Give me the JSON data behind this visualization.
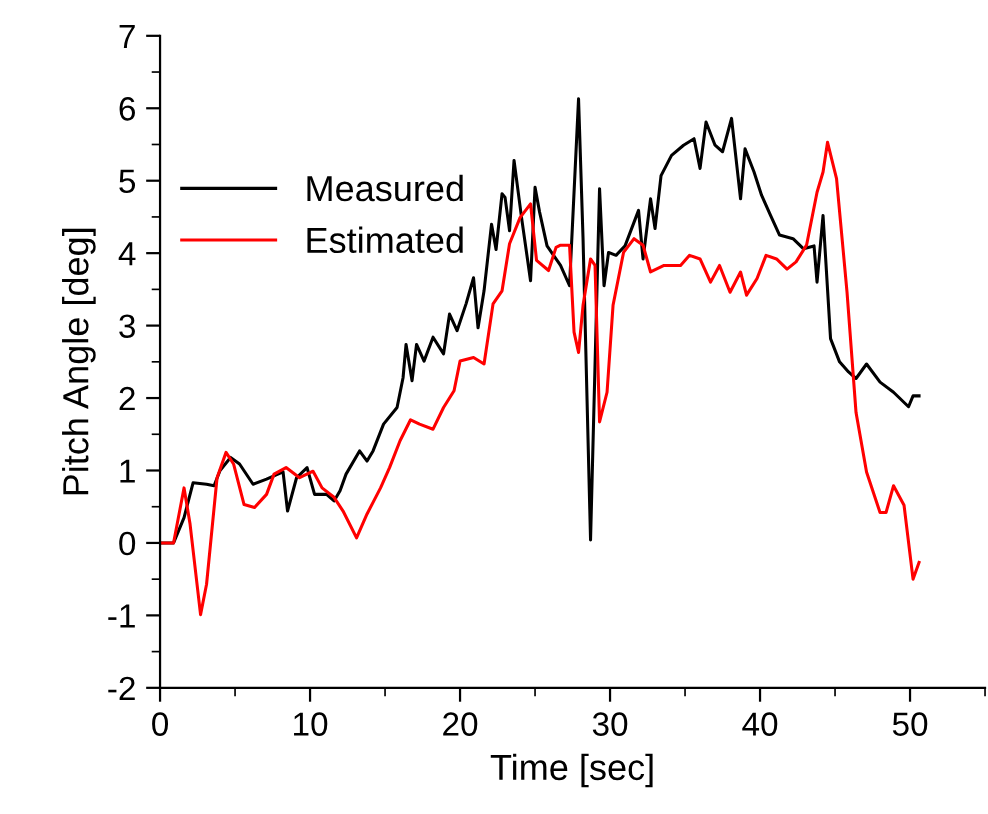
{
  "chart_data": {
    "type": "line",
    "xlabel": "Time [sec]",
    "ylabel": "Pitch Angle [deg]",
    "xlim": [
      0,
      55
    ],
    "ylim": [
      -2,
      7
    ],
    "xticks": [
      0,
      {
        "value": 5,
        "label": null
      },
      10,
      {
        "value": 15,
        "label": null
      },
      20,
      {
        "value": 25,
        "label": null
      },
      30,
      {
        "value": 35,
        "label": null
      },
      40,
      {
        "value": 45,
        "label": null
      },
      50,
      {
        "value": 55,
        "label": null
      }
    ],
    "yticks": [
      -2,
      {
        "value": -1.5,
        "label": null
      },
      -1,
      {
        "value": -0.5,
        "label": null
      },
      0,
      {
        "value": 0.5,
        "label": null
      },
      1,
      {
        "value": 1.5,
        "label": null
      },
      2,
      {
        "value": 2.5,
        "label": null
      },
      3,
      {
        "value": 3.5,
        "label": null
      },
      4,
      {
        "value": 4.5,
        "label": null
      },
      5,
      {
        "value": 5.5,
        "label": null
      },
      6,
      {
        "value": 6.5,
        "label": null
      },
      7
    ],
    "legend": "top left",
    "grid": false,
    "marker": "none",
    "line_style": "solid",
    "series": [
      {
        "name": "Measured",
        "color": "#000000",
        "x": [
          0,
          0.9,
          1.6,
          2.2,
          3.1,
          3.6,
          4,
          4.7,
          5.3,
          6.2,
          7.1,
          8.2,
          8.5,
          9.1,
          9.8,
          10.3,
          11.1,
          11.6,
          12,
          12.4,
          13.3,
          13.8,
          14.2,
          14.9,
          15.8,
          16.2,
          16.4,
          16.8,
          17.1,
          17.6,
          18.2,
          18.9,
          19.3,
          19.8,
          20.4,
          20.9,
          21.2,
          21.6,
          22.1,
          22.4,
          22.8,
          23,
          23.3,
          23.6,
          24.1,
          24.7,
          25,
          25.3,
          25.8,
          26.7,
          27.3,
          27.9,
          28.2,
          28.7,
          29.3,
          29.6,
          29.9,
          30.4,
          31,
          31.9,
          32.2,
          32.7,
          33,
          33.4,
          34.1,
          34.9,
          35.6,
          36,
          36.4,
          37,
          37.5,
          38.1,
          38.7,
          39,
          39.6,
          40.1,
          40.7,
          41.3,
          42.2,
          42.9,
          43.6,
          43.8,
          44.2,
          44.7,
          45.3,
          45.9,
          46.4,
          47.1,
          48,
          48.9,
          49.9,
          50.2,
          50.6
        ],
        "values": [
          0,
          0,
          0.35,
          0.83,
          0.81,
          0.79,
          1.0,
          1.18,
          1.09,
          0.81,
          0.88,
          0.98,
          0.44,
          0.9,
          1.04,
          0.67,
          0.67,
          0.58,
          0.72,
          0.95,
          1.27,
          1.13,
          1.27,
          1.64,
          1.87,
          2.28,
          2.74,
          2.24,
          2.74,
          2.51,
          2.84,
          2.61,
          3.16,
          2.93,
          3.3,
          3.66,
          2.97,
          3.48,
          4.4,
          4.05,
          4.82,
          4.77,
          4.31,
          5.28,
          4.49,
          3.62,
          4.91,
          4.57,
          4.1,
          3.83,
          3.55,
          6.13,
          4.2,
          0.04,
          4.89,
          3.55,
          4.01,
          3.97,
          4.1,
          4.59,
          3.92,
          4.75,
          4.34,
          5.07,
          5.35,
          5.49,
          5.58,
          5.17,
          5.81,
          5.49,
          5.4,
          5.86,
          4.75,
          5.44,
          5.12,
          4.8,
          4.52,
          4.25,
          4.2,
          4.06,
          4.1,
          3.6,
          4.52,
          2.82,
          2.5,
          2.36,
          2.27,
          2.47,
          2.22,
          2.08,
          1.88,
          2.03,
          2.03
        ]
      },
      {
        "name": "Estimated",
        "color": "#ff0000",
        "x": [
          0,
          0.9,
          1.6,
          2,
          2.7,
          3.1,
          3.8,
          4.4,
          4.9,
          5.6,
          6.3,
          7.1,
          7.6,
          8.4,
          9.3,
          10.2,
          10.8,
          11.6,
          12.2,
          13.1,
          13.8,
          14.7,
          15.3,
          16,
          16.7,
          17.3,
          18.2,
          18.9,
          19.6,
          20,
          20.9,
          21.6,
          22.2,
          22.8,
          23.3,
          24,
          24.7,
          25.1,
          25.9,
          26.4,
          26.7,
          27.3,
          27.6,
          27.9,
          28.2,
          28.7,
          29,
          29.3,
          29.8,
          30.2,
          30.9,
          31.6,
          32.2,
          32.7,
          33.6,
          34.7,
          35.3,
          36,
          36.7,
          37.3,
          38,
          38.7,
          39.1,
          39.8,
          40.4,
          41.1,
          41.8,
          42.4,
          43.1,
          43.8,
          44.2,
          44.5,
          45.1,
          45.8,
          46.4,
          47.1,
          48,
          48.4,
          48.9,
          49.6,
          50.2,
          50.6
        ],
        "values": [
          0,
          0,
          0.76,
          0.26,
          -0.99,
          -0.57,
          0.9,
          1.25,
          1.09,
          0.53,
          0.49,
          0.67,
          0.95,
          1.04,
          0.9,
          0.99,
          0.76,
          0.63,
          0.44,
          0.07,
          0.4,
          0.76,
          1.04,
          1.41,
          1.7,
          1.64,
          1.57,
          1.87,
          2.1,
          2.51,
          2.56,
          2.47,
          3.3,
          3.48,
          4.13,
          4.49,
          4.68,
          3.9,
          3.76,
          4.08,
          4.11,
          4.11,
          2.91,
          2.63,
          3.28,
          3.92,
          3.83,
          1.67,
          2.08,
          3.28,
          4.01,
          4.2,
          4.11,
          3.74,
          3.83,
          3.83,
          3.97,
          3.92,
          3.6,
          3.83,
          3.46,
          3.74,
          3.42,
          3.65,
          3.97,
          3.92,
          3.78,
          3.88,
          4.11,
          4.84,
          5.12,
          5.53,
          5.03,
          3.46,
          1.8,
          0.98,
          0.42,
          0.42,
          0.79,
          0.52,
          -0.5,
          -0.27
        ]
      }
    ]
  }
}
